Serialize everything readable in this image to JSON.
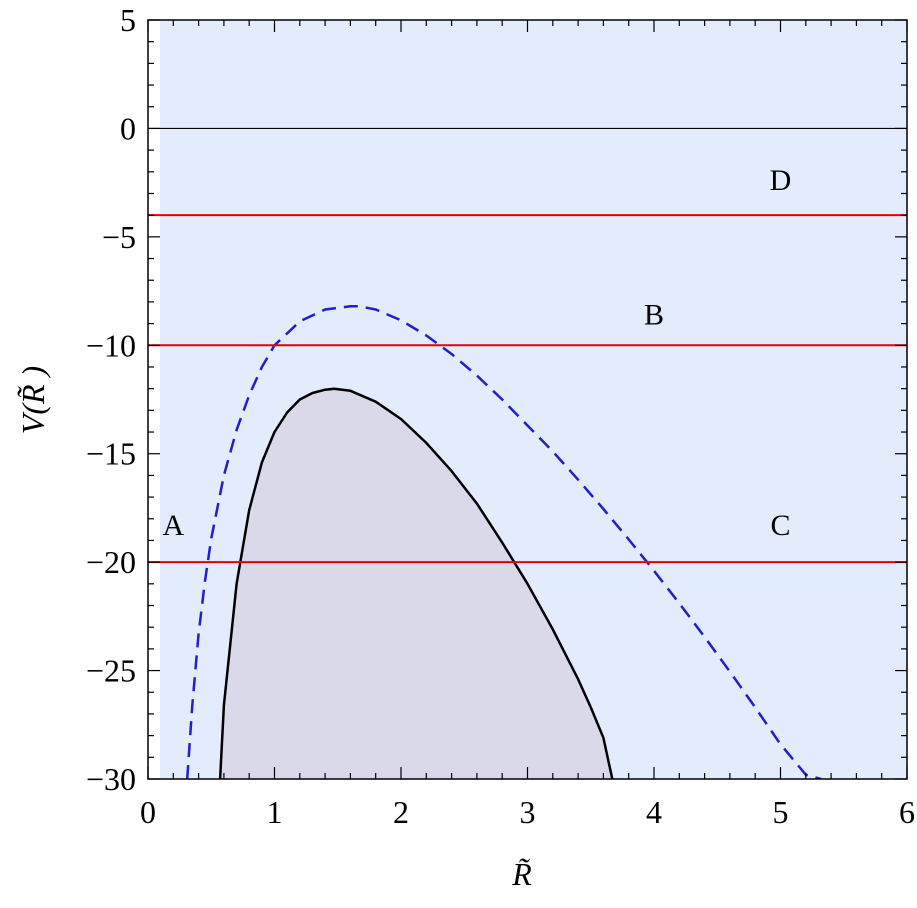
{
  "chart_data": {
    "type": "line",
    "xlabel": "R̃",
    "ylabel": "V(R̃ )",
    "xlim": [
      0,
      6
    ],
    "ylim": [
      -30,
      5
    ],
    "x_ticks": [
      "0",
      "1",
      "2",
      "3",
      "4",
      "5",
      "6"
    ],
    "y_ticks": [
      "5",
      "0",
      "−5",
      "−10",
      "−15",
      "−20",
      "−25",
      "−30"
    ],
    "grid": false,
    "background_color": "#e2ecfc",
    "series": [
      {
        "style": "solid-black",
        "color": "#000000",
        "filled": true,
        "fill_color": "#d9d9ea",
        "x": [
          0.57,
          0.6,
          0.7,
          0.8,
          0.9,
          1.0,
          1.1,
          1.2,
          1.3,
          1.4,
          1.47,
          1.6,
          1.8,
          2.0,
          2.2,
          2.4,
          2.6,
          2.8,
          3.0,
          3.2,
          3.4,
          3.5,
          3.6,
          3.67
        ],
        "y": [
          -30.0,
          -26.6,
          -21.0,
          -17.6,
          -15.4,
          -14.0,
          -13.1,
          -12.5,
          -12.2,
          -12.05,
          -12.0,
          -12.1,
          -12.6,
          -13.4,
          -14.5,
          -15.8,
          -17.3,
          -19.1,
          -21.0,
          -23.1,
          -25.4,
          -26.7,
          -28.1,
          -30.0
        ]
      },
      {
        "style": "dashed-blue",
        "color": "#1f1fcc",
        "filled": false,
        "x": [
          0.31,
          0.35,
          0.4,
          0.45,
          0.5,
          0.6,
          0.7,
          0.8,
          0.9,
          1.0,
          1.2,
          1.4,
          1.6,
          1.67,
          1.8,
          2.0,
          2.2,
          2.4,
          2.6,
          2.8,
          3.0,
          3.2,
          3.4,
          3.6,
          3.8,
          4.0,
          4.2,
          4.4,
          4.6,
          4.8,
          5.0,
          5.2,
          5.32
        ],
        "y": [
          -30.0,
          -26.6,
          -23.3,
          -20.9,
          -18.9,
          -16.0,
          -13.9,
          -12.3,
          -11.0,
          -10.0,
          -8.9,
          -8.35,
          -8.2,
          -8.2,
          -8.35,
          -8.85,
          -9.55,
          -10.4,
          -11.4,
          -12.5,
          -13.7,
          -14.9,
          -16.2,
          -17.55,
          -18.95,
          -20.4,
          -21.9,
          -23.45,
          -25.05,
          -26.7,
          -28.4,
          -29.8,
          -30.0
        ]
      }
    ],
    "horizontal_lines": [
      {
        "y": 0,
        "color": "#000000"
      },
      {
        "y": -4,
        "color": "#e60000"
      },
      {
        "y": -10,
        "color": "#e60000"
      },
      {
        "y": -20,
        "color": "#e60000"
      }
    ],
    "annotations": [
      {
        "text": "A",
        "x": 0.2,
        "y": -18.3
      },
      {
        "text": "B",
        "x": 4.0,
        "y": -8.6
      },
      {
        "text": "C",
        "x": 5.0,
        "y": -18.3
      },
      {
        "text": "D",
        "x": 5.0,
        "y": -2.4
      }
    ]
  }
}
